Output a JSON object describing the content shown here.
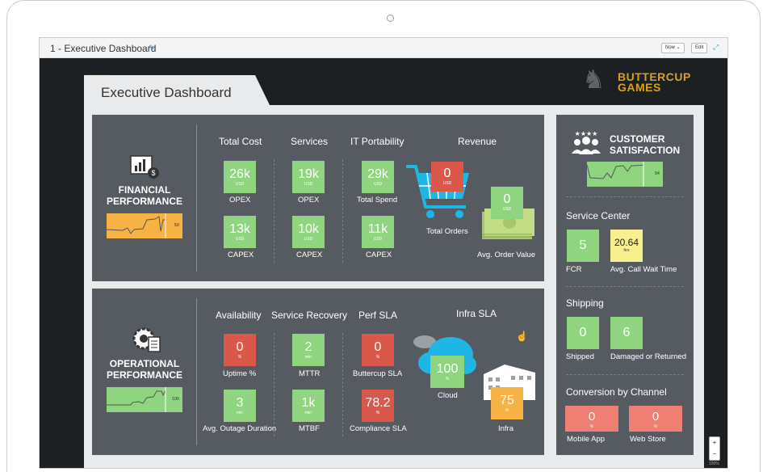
{
  "window": {
    "title": "1 - Executive Dashboard",
    "now_btn": "Now ⌄",
    "edit_btn": "Edit",
    "zoom_level": "100%",
    "zoom_in": "+",
    "zoom_out": "−"
  },
  "brand": {
    "line1": "BUTTERCUP",
    "line2": "GAMES"
  },
  "dashboard": {
    "title": "Executive Dashboard"
  },
  "financial": {
    "title_line1": "FINANCIAL",
    "title_line2": "PERFORMANCE",
    "spark_value": "50",
    "headers": {
      "total_cost": "Total Cost",
      "services": "Services",
      "it_portability": "IT Portability",
      "revenue": "Revenue"
    },
    "tiles": [
      {
        "value": "26k",
        "unit": "USD",
        "label": "OPEX"
      },
      {
        "value": "19k",
        "unit": "USD",
        "label": "OPEX"
      },
      {
        "value": "29k",
        "unit": "USD",
        "label": "Total Spend"
      },
      {
        "value": "13k",
        "unit": "USD",
        "label": "CAPEX"
      },
      {
        "value": "10k",
        "unit": "USD",
        "label": "CAPEX"
      },
      {
        "value": "11k",
        "unit": "USD",
        "label": "CAPEX"
      }
    ],
    "revenue": {
      "orders": {
        "value": "0",
        "unit": "USD",
        "label": "Total Orders"
      },
      "aov": {
        "value": "0",
        "unit": "USD",
        "label": "Avg. Order Value"
      }
    }
  },
  "operational": {
    "title_line1": "OPERATIONAL",
    "title_line2": "PERFORMANCE",
    "spark_value": "100",
    "headers": {
      "availability": "Availability",
      "service_recovery": "Service Recovery",
      "perf_sla": "Perf SLA",
      "infra_sla": "Infra SLA"
    },
    "tiles": [
      {
        "value": "0",
        "unit": "%",
        "label": "Uptime %"
      },
      {
        "value": "2",
        "unit": "min",
        "label": "MTTR"
      },
      {
        "value": "0",
        "unit": "%",
        "label": "Buttercup SLA"
      },
      {
        "value": "3",
        "unit": "min",
        "label": "Avg. Outage Duration"
      },
      {
        "value": "1k",
        "unit": "min",
        "label": "MTBF"
      },
      {
        "value": "78.2",
        "unit": "%",
        "label": "Compliance SLA"
      }
    ],
    "cloud": {
      "value": "100",
      "unit": "%",
      "label": "Cloud"
    },
    "infra": {
      "value": "75",
      "unit": "%",
      "label": "Infra"
    }
  },
  "customer": {
    "title_line1": "CUSTOMER",
    "title_line2": "SATISFACTION",
    "spark_value": "94",
    "service_center": {
      "title": "Service Center",
      "fcr": {
        "value": "5",
        "label": "FCR"
      },
      "wait": {
        "value": "20.64",
        "unit": "hrs",
        "label": "Avg. Call Wait Time"
      }
    },
    "shipping": {
      "title": "Shipping",
      "shipped": {
        "value": "0",
        "label": "Shipped"
      },
      "damaged": {
        "value": "6",
        "label": "Damaged or Returned"
      }
    },
    "conversion": {
      "title": "Conversion by Channel",
      "mobile": {
        "value": "0",
        "unit": "%",
        "label": "Mobile App"
      },
      "web": {
        "value": "0",
        "unit": "%",
        "label": "Web Store"
      }
    }
  },
  "colors": {
    "good": "#8fd57f",
    "bad": "#d9584a",
    "warn": "#f7f08d",
    "mid": "#f6b244",
    "panel": "#565b62"
  }
}
